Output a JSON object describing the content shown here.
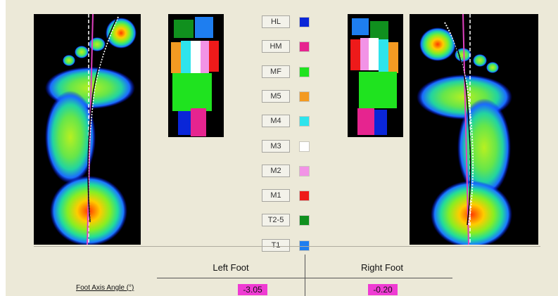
{
  "legend": [
    {
      "label": "HL",
      "color": "#0a26d8"
    },
    {
      "label": "HM",
      "color": "#e6248f"
    },
    {
      "label": "MF",
      "color": "#1fe31f"
    },
    {
      "label": "M5",
      "color": "#f39a22"
    },
    {
      "label": "M4",
      "color": "#2ee4ec"
    },
    {
      "label": "M3",
      "color": "#ffffff"
    },
    {
      "label": "M2",
      "color": "#f293e6"
    },
    {
      "label": "M1",
      "color": "#ee1a1a"
    },
    {
      "label": "T2-5",
      "color": "#10901e"
    },
    {
      "label": "T1",
      "color": "#1e7ef0"
    }
  ],
  "table": {
    "col_left": "Left Foot",
    "col_right": "Right Foot",
    "row_label": "Foot Axis Angle (°)",
    "left_value": "-3.05",
    "right_value": "-0.20"
  },
  "colors": {
    "highlight": "#ef3bd3",
    "panel_bg": "#ece9d8",
    "axis_line": "#e040c0"
  }
}
